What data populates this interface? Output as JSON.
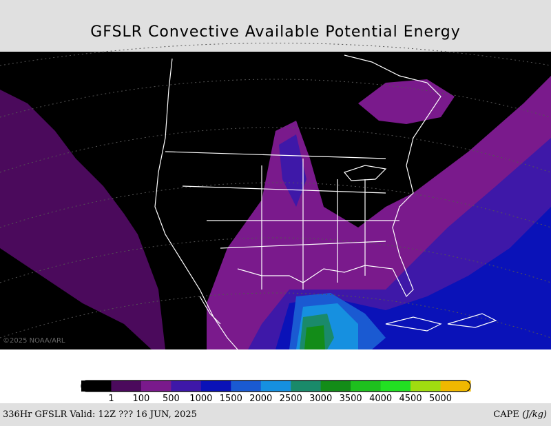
{
  "header": {
    "title": "GFSLR Convective Available Potential Energy"
  },
  "map": {
    "watermark": "©2025 NOAA/ARL"
  },
  "colorbar": {
    "colors": [
      "#000000",
      "#4b0a5c",
      "#7a1a8c",
      "#3e18a8",
      "#0a12b8",
      "#1a5ad2",
      "#1690e0",
      "#1a8a6a",
      "#138c18",
      "#1ec01e",
      "#22e022",
      "#a0dc10",
      "#f0b800"
    ],
    "labels": [
      "1",
      "100",
      "500",
      "1000",
      "1500",
      "2000",
      "2500",
      "3000",
      "3500",
      "4000",
      "4500",
      "5000"
    ]
  },
  "footer": {
    "left": "336Hr GFSLR Valid: 12Z ??? 16 JUN, 2025",
    "right_name": "CAPE",
    "right_unit": "(J/kg)"
  }
}
